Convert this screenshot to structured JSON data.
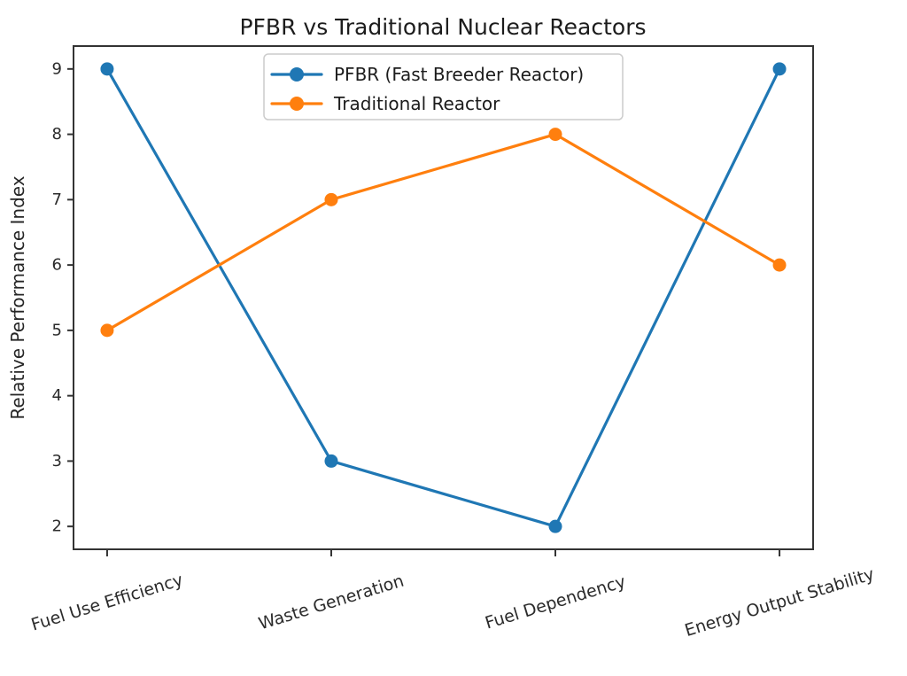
{
  "chart_data": {
    "type": "line",
    "title": "PFBR vs Traditional Nuclear Reactors",
    "ylabel": "Relative Performance Index",
    "xlabel": "",
    "categories": [
      "Fuel Use Efficiency",
      "Waste Generation",
      "Fuel Dependency",
      "Energy Output Stability"
    ],
    "series": [
      {
        "name": "PFBR (Fast Breeder Reactor)",
        "color": "#1f77b4",
        "values": [
          9,
          3,
          2,
          9
        ]
      },
      {
        "name": "Traditional Reactor",
        "color": "#ff7f0e",
        "values": [
          5,
          7,
          8,
          6
        ]
      }
    ],
    "yticks": [
      2,
      3,
      4,
      5,
      6,
      7,
      8,
      9
    ],
    "ylim": [
      1.65,
      9.35
    ],
    "grid": false,
    "legend_position": "upper center",
    "marker": "o",
    "xtick_rotation": -17
  },
  "colors": {
    "pfbr": "#1f77b4",
    "traditional": "#ff7f0e",
    "spine": "#333333",
    "text": "#2b2b2b",
    "legend_border": "#cccccc",
    "background": "#ffffff"
  }
}
